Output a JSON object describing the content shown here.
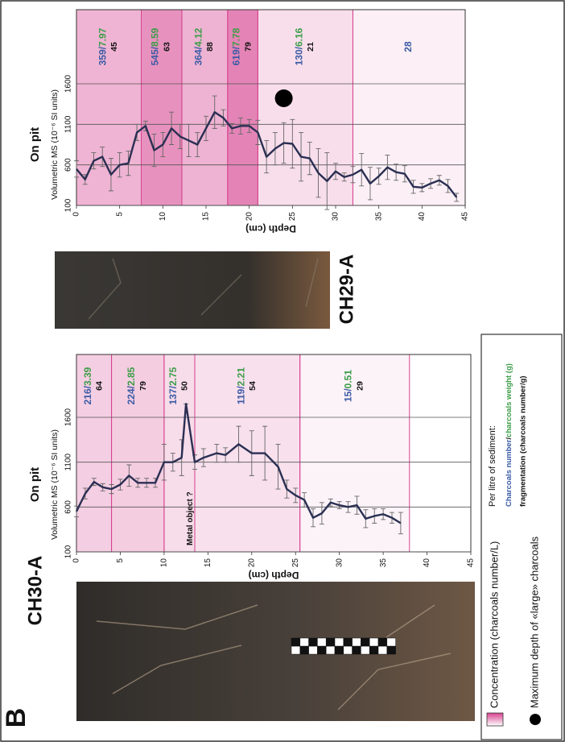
{
  "figure_label": "B",
  "separator": "/",
  "colors": {
    "band": "#d6428f",
    "number": "#3b5ba5",
    "weight": "#3c9d47",
    "fragmentation": "#111111",
    "line": "#2a2f52",
    "marker": "#000000"
  },
  "legend": {
    "concentration": "Concentration (charcoals number/L)",
    "max_depth": "Maximum depth of «large» charcoals",
    "per_litre": "Per litre of sediment:",
    "number": "Charcoals number",
    "weight": "charcoals weight (g)",
    "fragmentation": "fragmentation (charcoals number/g)"
  },
  "chart_data": [
    {
      "type": "line",
      "site": "CH30-A",
      "title": "On pit",
      "y_label": "Volumetric MS (10⁻⁶ SI units)",
      "x_label": "Depth (cm)",
      "xlim": [
        0,
        45
      ],
      "xticks": [
        0,
        5,
        10,
        15,
        20,
        25,
        30,
        35,
        40,
        45
      ],
      "ylim": [
        100,
        1600
      ],
      "yticks": [
        100,
        600,
        1100,
        1600
      ],
      "grid": true,
      "x": [
        0,
        1,
        2,
        3,
        4,
        5,
        6,
        7,
        8,
        9,
        10,
        11,
        12,
        12.5,
        13.5,
        14.5,
        16,
        17,
        18.5,
        20,
        21.5,
        23,
        24,
        25,
        26,
        27,
        28,
        29,
        30,
        31,
        32,
        33,
        34,
        35,
        36,
        37
      ],
      "values": [
        550,
        750,
        880,
        820,
        800,
        850,
        950,
        870,
        870,
        870,
        1100,
        1100,
        1150,
        1750,
        1100,
        1150,
        1200,
        1180,
        1300,
        1200,
        1200,
        1050,
        800,
        730,
        680,
        480,
        530,
        650,
        620,
        600,
        620,
        470,
        500,
        520,
        480,
        420
      ],
      "errors": [
        60,
        60,
        40,
        40,
        50,
        60,
        120,
        50,
        50,
        50,
        200,
        100,
        200,
        0,
        80,
        100,
        100,
        80,
        200,
        250,
        300,
        250,
        100,
        80,
        80,
        100,
        120,
        40,
        40,
        60,
        100,
        100,
        80,
        60,
        60,
        120
      ],
      "annotation": "Metal object ?",
      "layers": [
        {
          "from": 0,
          "to": 4,
          "concentration": 216,
          "weight": 3.39,
          "fragmentation": 64
        },
        {
          "from": 4,
          "to": 10,
          "concentration": 224,
          "weight": 2.85,
          "fragmentation": 79
        },
        {
          "from": 10,
          "to": 13.5,
          "concentration": 137,
          "weight": 2.75,
          "fragmentation": 50
        },
        {
          "from": 13.5,
          "to": 25.5,
          "concentration": 119,
          "weight": 2.21,
          "fragmentation": 54
        },
        {
          "from": 25.5,
          "to": 38,
          "concentration": 15,
          "weight": 0.51,
          "fragmentation": 29
        }
      ]
    },
    {
      "type": "line",
      "site": "CH29-A",
      "title": "On pit",
      "y_label": "Volumetric MS (10⁻⁶ SI units)",
      "x_label": "Depth (cm)",
      "xlim": [
        0,
        45
      ],
      "xticks": [
        0,
        5,
        10,
        15,
        20,
        25,
        30,
        35,
        40,
        45
      ],
      "ylim": [
        100,
        1600
      ],
      "yticks": [
        100,
        600,
        1100,
        1600
      ],
      "grid": true,
      "x": [
        0,
        1,
        2,
        3,
        4,
        5,
        6,
        7,
        8,
        9,
        10,
        11,
        12,
        13,
        14,
        15,
        16,
        17,
        18,
        19,
        20,
        21,
        22,
        23,
        24,
        25,
        26,
        27,
        28,
        29,
        30,
        31,
        32,
        33,
        34,
        35,
        36,
        37,
        38,
        39,
        40,
        41,
        42,
        43,
        44
      ],
      "values": [
        550,
        420,
        650,
        700,
        480,
        600,
        620,
        1000,
        1080,
        780,
        850,
        1050,
        950,
        900,
        850,
        1050,
        1250,
        1180,
        1050,
        1080,
        1080,
        1000,
        700,
        800,
        870,
        860,
        700,
        680,
        500,
        400,
        520,
        450,
        480,
        540,
        370,
        460,
        570,
        510,
        490,
        330,
        320,
        370,
        410,
        340,
        200
      ],
      "errors": [
        100,
        60,
        100,
        120,
        200,
        150,
        150,
        100,
        60,
        200,
        150,
        200,
        150,
        200,
        150,
        150,
        200,
        100,
        60,
        100,
        80,
        150,
        200,
        200,
        250,
        300,
        300,
        200,
        300,
        350,
        100,
        50,
        100,
        200,
        200,
        100,
        150,
        100,
        100,
        80,
        50,
        60,
        60,
        80,
        50
      ],
      "max_large_charcoal_depth": 24,
      "layers": [
        {
          "from": 0,
          "to": 7.5,
          "concentration": 359,
          "weight": 7.97,
          "fragmentation": 45
        },
        {
          "from": 7.5,
          "to": 12.2,
          "concentration": 545,
          "weight": 8.59,
          "fragmentation": 63
        },
        {
          "from": 12.2,
          "to": 17.5,
          "concentration": 364,
          "weight": 4.12,
          "fragmentation": 88
        },
        {
          "from": 17.5,
          "to": 21,
          "concentration": 619,
          "weight": 7.78,
          "fragmentation": 79
        },
        {
          "from": 21,
          "to": 32,
          "concentration": 130,
          "weight": 6.16,
          "fragmentation": 21
        },
        {
          "from": 32,
          "to": 45,
          "concentration": 28
        }
      ]
    }
  ]
}
